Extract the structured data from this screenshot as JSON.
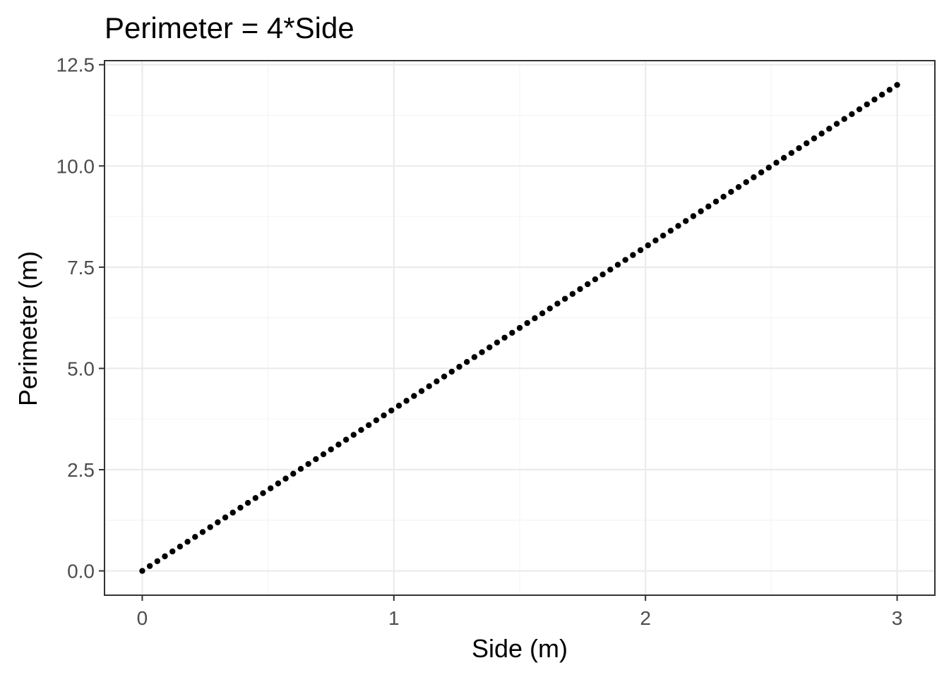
{
  "chart_data": {
    "type": "scatter",
    "title": "Perimeter = 4*Side",
    "xlabel": "Side (m)",
    "ylabel": "Perimeter (m)",
    "xlim": [
      -0.15,
      3.15
    ],
    "ylim": [
      -0.6,
      12.6
    ],
    "x_ticks": [
      0,
      1,
      2,
      3
    ],
    "x_tick_labels": [
      "0",
      "1",
      "2",
      "3"
    ],
    "y_ticks": [
      0,
      2.5,
      5,
      7.5,
      10,
      12.5
    ],
    "y_tick_labels": [
      "0.0",
      "2.5",
      "5.0",
      "7.5",
      "10.0",
      "12.5"
    ],
    "grid": true,
    "series": [
      {
        "x": [
          0.0,
          0.03,
          0.06,
          0.09,
          0.12,
          0.15,
          0.18,
          0.21,
          0.24,
          0.27,
          0.3,
          0.33,
          0.36,
          0.39,
          0.42,
          0.45,
          0.48,
          0.51,
          0.54,
          0.57,
          0.6,
          0.63,
          0.66,
          0.69,
          0.72,
          0.75,
          0.78,
          0.81,
          0.84,
          0.87,
          0.9,
          0.93,
          0.96,
          0.99,
          1.02,
          1.05,
          1.08,
          1.11,
          1.14,
          1.17,
          1.2,
          1.23,
          1.26,
          1.29,
          1.32,
          1.35,
          1.38,
          1.41,
          1.44,
          1.47,
          1.5,
          1.53,
          1.56,
          1.59,
          1.62,
          1.65,
          1.68,
          1.71,
          1.74,
          1.77,
          1.8,
          1.83,
          1.86,
          1.89,
          1.92,
          1.95,
          1.98,
          2.01,
          2.04,
          2.07,
          2.1,
          2.13,
          2.16,
          2.19,
          2.22,
          2.25,
          2.28,
          2.31,
          2.34,
          2.37,
          2.4,
          2.43,
          2.46,
          2.49,
          2.52,
          2.55,
          2.58,
          2.61,
          2.64,
          2.67,
          2.7,
          2.73,
          2.76,
          2.79,
          2.82,
          2.85,
          2.88,
          2.91,
          2.94,
          2.97,
          3.0
        ],
        "y": [
          0.0,
          0.12,
          0.24,
          0.36,
          0.48,
          0.6,
          0.72,
          0.84,
          0.96,
          1.08,
          1.2,
          1.32,
          1.44,
          1.56,
          1.68,
          1.8,
          1.92,
          2.04,
          2.16,
          2.28,
          2.4,
          2.52,
          2.64,
          2.76,
          2.88,
          3.0,
          3.12,
          3.24,
          3.36,
          3.48,
          3.6,
          3.72,
          3.84,
          3.96,
          4.08,
          4.2,
          4.32,
          4.44,
          4.56,
          4.68,
          4.8,
          4.92,
          5.04,
          5.16,
          5.28,
          5.4,
          5.52,
          5.64,
          5.76,
          5.88,
          6.0,
          6.12,
          6.24,
          6.36,
          6.48,
          6.6,
          6.72,
          6.84,
          6.96,
          7.08,
          7.2,
          7.32,
          7.44,
          7.56,
          7.68,
          7.8,
          7.92,
          8.04,
          8.16,
          8.28,
          8.4,
          8.52,
          8.64,
          8.76,
          8.88,
          9.0,
          9.12,
          9.24,
          9.36,
          9.48,
          9.6,
          9.72,
          9.84,
          9.96,
          10.08,
          10.2,
          10.32,
          10.44,
          10.56,
          10.68,
          10.8,
          10.92,
          11.04,
          11.16,
          11.28,
          11.4,
          11.52,
          11.64,
          11.76,
          11.88,
          12.0
        ],
        "color": "#000000"
      }
    ]
  },
  "colors": {
    "point": "#000000",
    "grid_major": "#ebebeb",
    "grid_minor": "#f5f5f5",
    "panel_border": "#333333",
    "tick_label": "#4d4d4d"
  }
}
